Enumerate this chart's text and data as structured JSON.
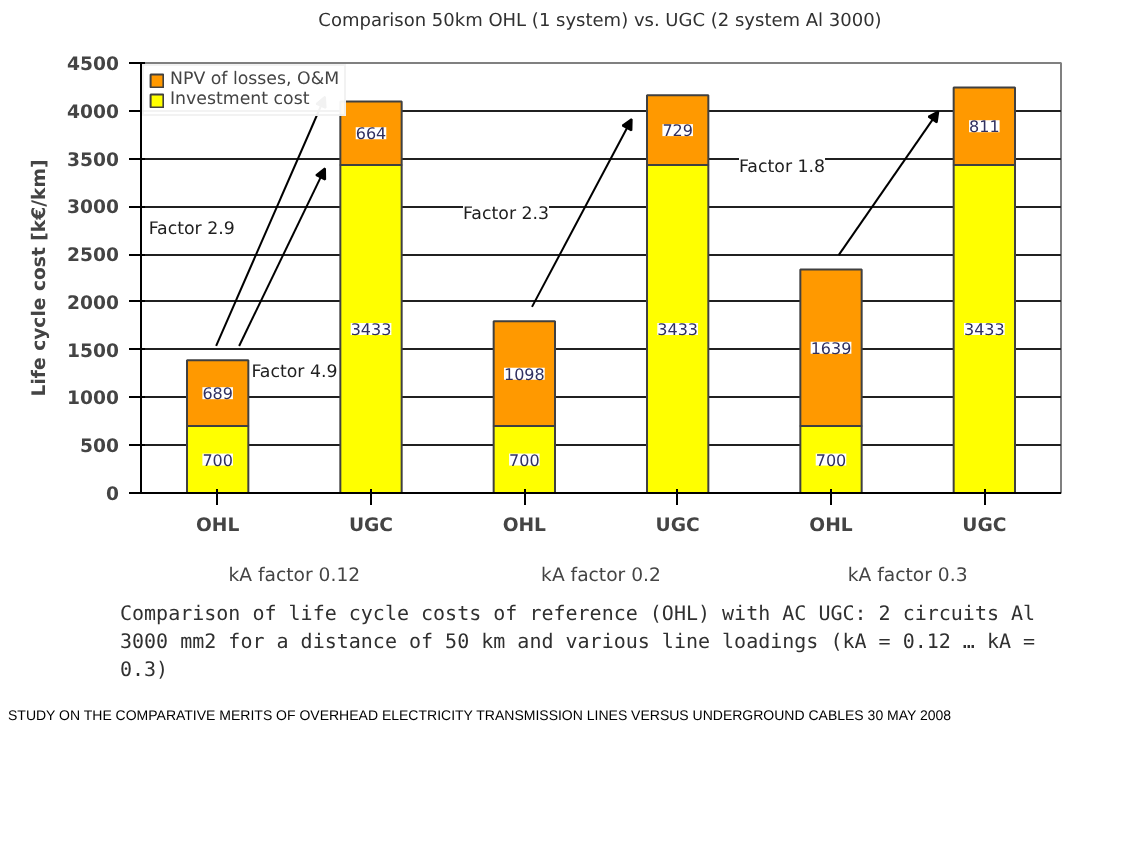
{
  "chart_data": {
    "type": "bar",
    "stacked": true,
    "title": "Comparison 50km OHL (1 system) vs. UGC (2 system Al 3000)",
    "ylabel": "Life cycle cost [k€/km]",
    "categories": [
      "OHL",
      "UGC",
      "OHL",
      "UGC",
      "OHL",
      "UGC"
    ],
    "series": [
      {
        "name": "Investment cost",
        "color": "#ffff00",
        "values": [
          700,
          3433,
          700,
          3433,
          700,
          3433
        ]
      },
      {
        "name": "NPV of losses, O&M",
        "color": "#ff9900",
        "values": [
          689,
          664,
          1098,
          729,
          1639,
          811
        ]
      }
    ],
    "ylim": [
      0,
      4500
    ],
    "yticks": [
      0,
      500,
      1000,
      1500,
      2000,
      2500,
      3000,
      3500,
      4000,
      4500
    ],
    "grid": "y",
    "legend": "top left",
    "data_labels": true,
    "annotations": [
      "kA factor 0.12",
      "kA factor 0.2",
      "kA factor 0.3",
      "Factor 2.9",
      "Factor 4.9",
      "Factor 2.3",
      "Factor 1.8",
      "Comparison of life cycle costs of reference (OHL) with AC UGC: 2 circuits Al 3000 mm2 for a distance of 50 km and various line loadings (kA = 0.12 … kA = 0.3)",
      "STUDY ON THE COMPARATIVE MERITS OF OVERHEAD ELECTRICITY TRANSMISSION LINES VERSUS UNDERGROUND CABLES 30 MAY 2008"
    ]
  }
}
